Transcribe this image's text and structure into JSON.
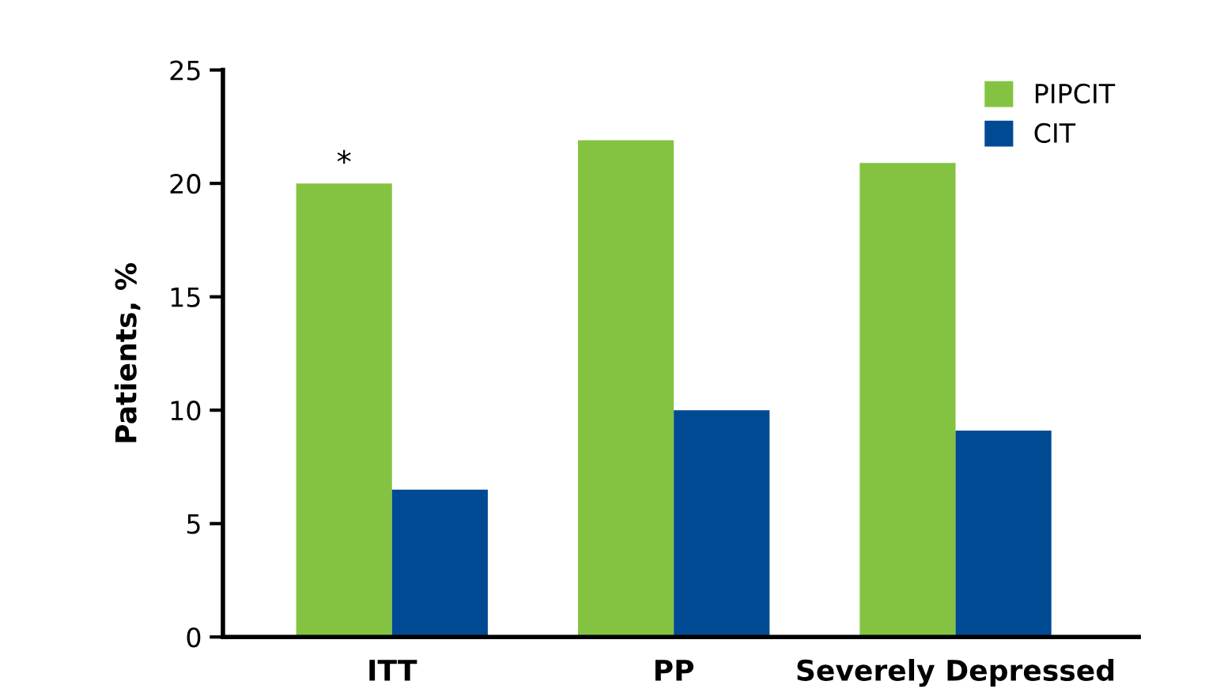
{
  "chart_data": {
    "type": "bar",
    "ylabel": "Patients, %",
    "categories": [
      "ITT",
      "PP",
      "Severely Depressed"
    ],
    "series": [
      {
        "name": "PIPCIT",
        "color": "#84c341",
        "values": [
          20.0,
          21.9,
          20.9
        ]
      },
      {
        "name": "CIT",
        "color": "#004a94",
        "values": [
          6.5,
          10.0,
          9.1
        ]
      }
    ],
    "ylim": [
      0,
      25
    ],
    "yticks": [
      0,
      5,
      10,
      15,
      20,
      25
    ],
    "grid": false,
    "legend": "top right",
    "annotations": [
      {
        "text": "*",
        "x": "ITT",
        "y": 20.0
      }
    ]
  }
}
